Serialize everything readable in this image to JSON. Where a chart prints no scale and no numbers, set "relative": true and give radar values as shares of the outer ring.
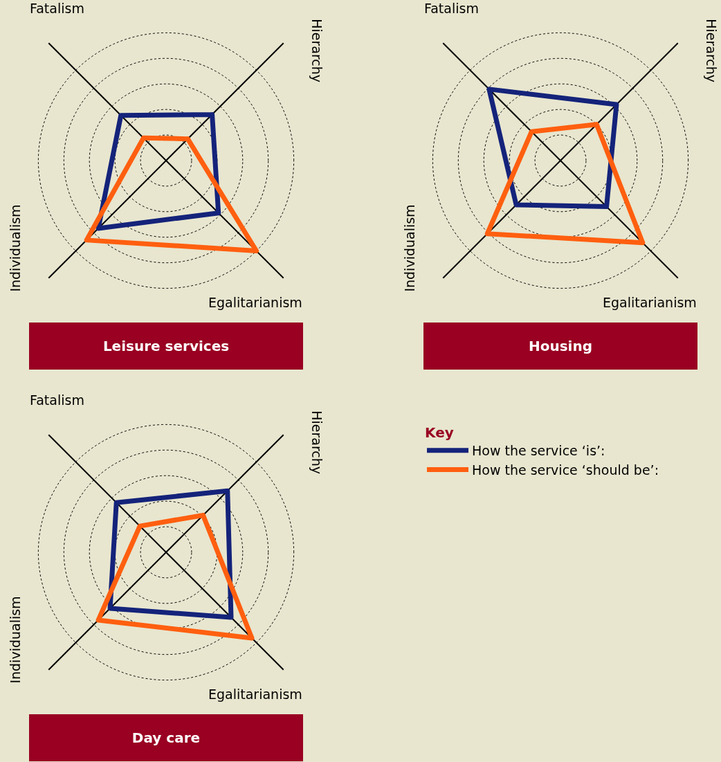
{
  "chart_data": [
    {
      "type": "radar",
      "title": "Leisure services",
      "categories": [
        "Hierarchy",
        "Egalitarianism",
        "Individualism",
        "Fatalism"
      ],
      "relative": true,
      "grid": true,
      "legend": false,
      "series": [
        {
          "color": "#14237a",
          "values": [
            0.51,
            0.58,
            0.75,
            0.5
          ]
        },
        {
          "color": "#ff5f0f",
          "values": [
            0.24,
            1.0,
            0.88,
            0.25
          ]
        }
      ]
    },
    {
      "type": "radar",
      "title": "Housing",
      "categories": [
        "Hierarchy",
        "Egalitarianism",
        "Individualism",
        "Fatalism"
      ],
      "relative": true,
      "grid": true,
      "legend": false,
      "series": [
        {
          "color": "#14237a",
          "values": [
            0.62,
            0.51,
            0.49,
            0.79
          ]
        },
        {
          "color": "#ff5f0f",
          "values": [
            0.4,
            0.91,
            0.81,
            0.32
          ]
        }
      ]
    },
    {
      "type": "radar",
      "title": "Day care",
      "categories": [
        "Hierarchy",
        "Egalitarianism",
        "Individualism",
        "Fatalism"
      ],
      "relative": true,
      "grid": true,
      "legend": "right",
      "legend_title": "Key",
      "series": [
        {
          "name": "How the service ‘is’:",
          "color": "#14237a",
          "values": [
            0.68,
            0.72,
            0.62,
            0.55
          ]
        },
        {
          "name": "How the service ‘should be’:",
          "color": "#ff5f0f",
          "values": [
            0.41,
            0.95,
            0.75,
            0.29
          ]
        }
      ]
    }
  ]
}
